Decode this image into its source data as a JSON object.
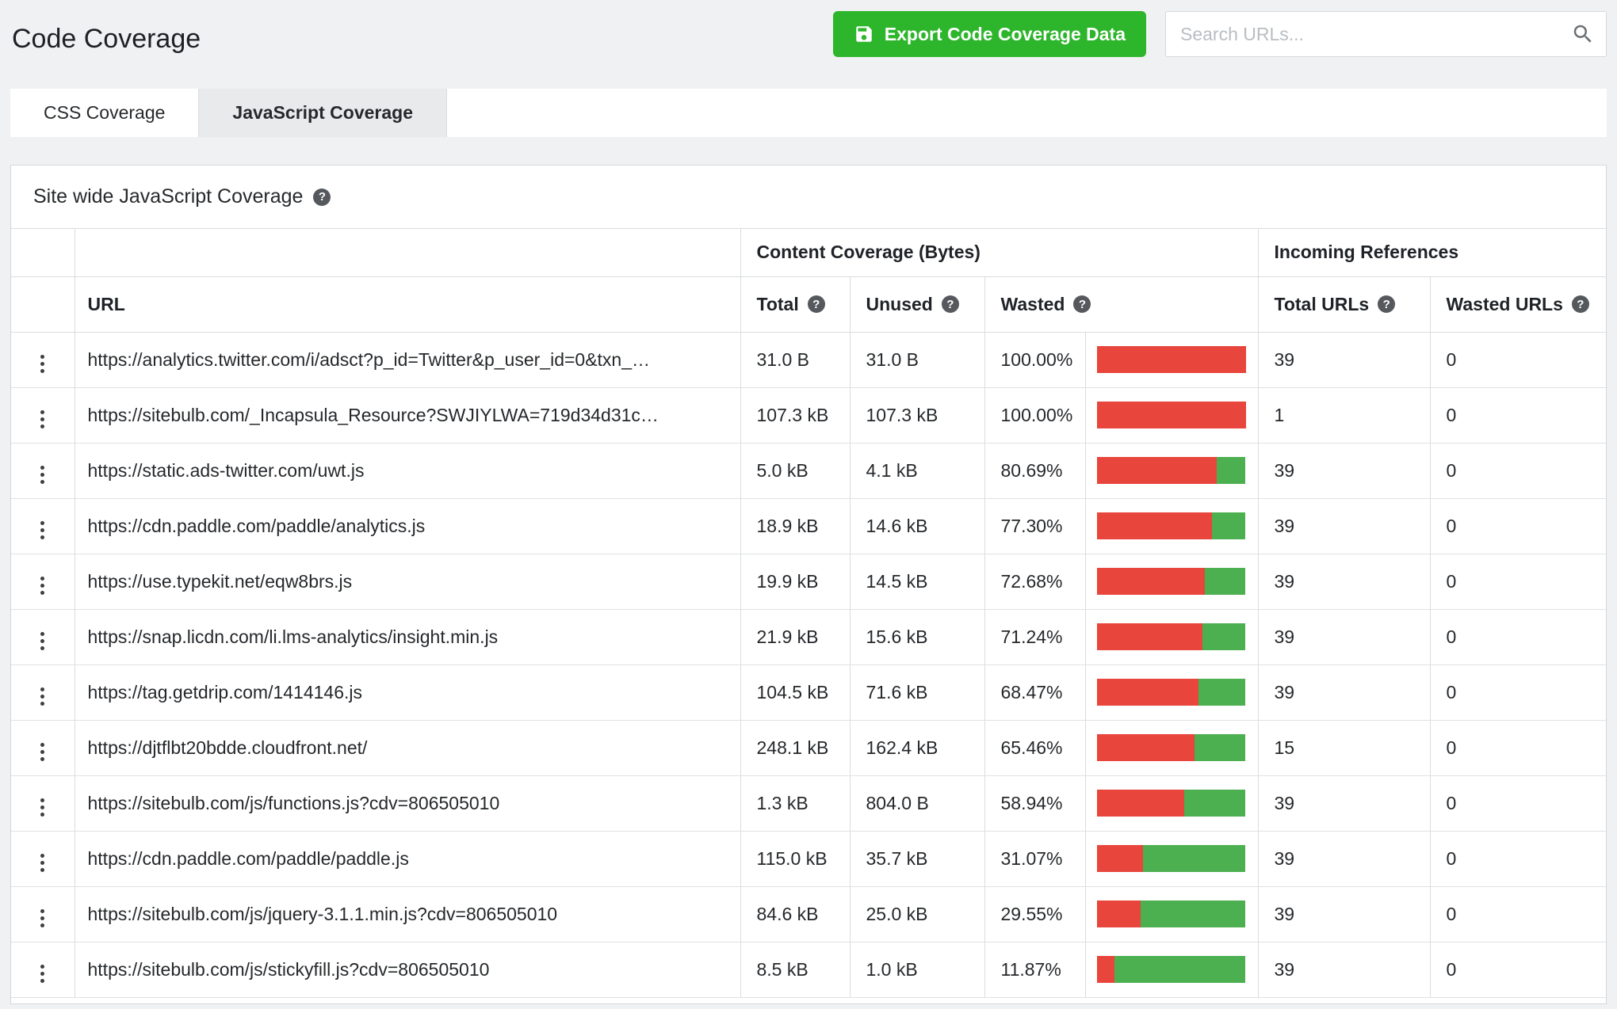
{
  "header": {
    "title": "Code Coverage",
    "export_button_label": "Export Code Coverage Data",
    "search_placeholder": "Search URLs..."
  },
  "tabs": {
    "css": "CSS Coverage",
    "javascript": "JavaScript Coverage",
    "active_tab": "JavaScript Coverage"
  },
  "panel": {
    "title": "Site wide JavaScript Coverage"
  },
  "table": {
    "groups": {
      "content_coverage": "Content Coverage (Bytes)",
      "incoming_references": "Incoming References"
    },
    "columns": {
      "url": "URL",
      "total": "Total",
      "unused": "Unused",
      "wasted": "Wasted",
      "total_urls": "Total URLs",
      "wasted_urls": "Wasted URLs"
    },
    "rows": [
      {
        "url": "https://analytics.twitter.com/i/adsct?p_id=Twitter&p_user_id=0&txn_…",
        "total": "31.0 B",
        "unused": "31.0 B",
        "wasted": "100.00%",
        "pct": 100,
        "total_urls": "39",
        "wasted_urls": "0"
      },
      {
        "url": "https://sitebulb.com/_Incapsula_Resource?SWJIYLWA=719d34d31c…",
        "total": "107.3 kB",
        "unused": "107.3 kB",
        "wasted": "100.00%",
        "pct": 100,
        "total_urls": "1",
        "wasted_urls": "0"
      },
      {
        "url": "https://static.ads-twitter.com/uwt.js",
        "total": "5.0 kB",
        "unused": "4.1 kB",
        "wasted": "80.69%",
        "pct": 80.69,
        "total_urls": "39",
        "wasted_urls": "0"
      },
      {
        "url": "https://cdn.paddle.com/paddle/analytics.js",
        "total": "18.9 kB",
        "unused": "14.6 kB",
        "wasted": "77.30%",
        "pct": 77.3,
        "total_urls": "39",
        "wasted_urls": "0"
      },
      {
        "url": "https://use.typekit.net/eqw8brs.js",
        "total": "19.9 kB",
        "unused": "14.5 kB",
        "wasted": "72.68%",
        "pct": 72.68,
        "total_urls": "39",
        "wasted_urls": "0"
      },
      {
        "url": "https://snap.licdn.com/li.lms-analytics/insight.min.js",
        "total": "21.9 kB",
        "unused": "15.6 kB",
        "wasted": "71.24%",
        "pct": 71.24,
        "total_urls": "39",
        "wasted_urls": "0"
      },
      {
        "url": "https://tag.getdrip.com/1414146.js",
        "total": "104.5 kB",
        "unused": "71.6 kB",
        "wasted": "68.47%",
        "pct": 68.47,
        "total_urls": "39",
        "wasted_urls": "0"
      },
      {
        "url": "https://djtflbt20bdde.cloudfront.net/",
        "total": "248.1 kB",
        "unused": "162.4 kB",
        "wasted": "65.46%",
        "pct": 65.46,
        "total_urls": "15",
        "wasted_urls": "0"
      },
      {
        "url": "https://sitebulb.com/js/functions.js?cdv=806505010",
        "total": "1.3 kB",
        "unused": "804.0 B",
        "wasted": "58.94%",
        "pct": 58.94,
        "total_urls": "39",
        "wasted_urls": "0"
      },
      {
        "url": "https://cdn.paddle.com/paddle/paddle.js",
        "total": "115.0 kB",
        "unused": "35.7 kB",
        "wasted": "31.07%",
        "pct": 31.07,
        "total_urls": "39",
        "wasted_urls": "0"
      },
      {
        "url": "https://sitebulb.com/js/jquery-3.1.1.min.js?cdv=806505010",
        "total": "84.6 kB",
        "unused": "25.0 kB",
        "wasted": "29.55%",
        "pct": 29.55,
        "total_urls": "39",
        "wasted_urls": "0"
      },
      {
        "url": "https://sitebulb.com/js/stickyfill.js?cdv=806505010",
        "total": "8.5 kB",
        "unused": "1.0 kB",
        "wasted": "11.87%",
        "pct": 11.87,
        "total_urls": "39",
        "wasted_urls": "0"
      }
    ]
  },
  "icons": {
    "export": "save-icon",
    "search": "search-icon",
    "help": "help-icon",
    "row_menu": "kebab-menu-icon"
  },
  "colors": {
    "accent_green": "#2db52c",
    "bar_red": "#e8453c",
    "bar_green": "#4caf50"
  }
}
